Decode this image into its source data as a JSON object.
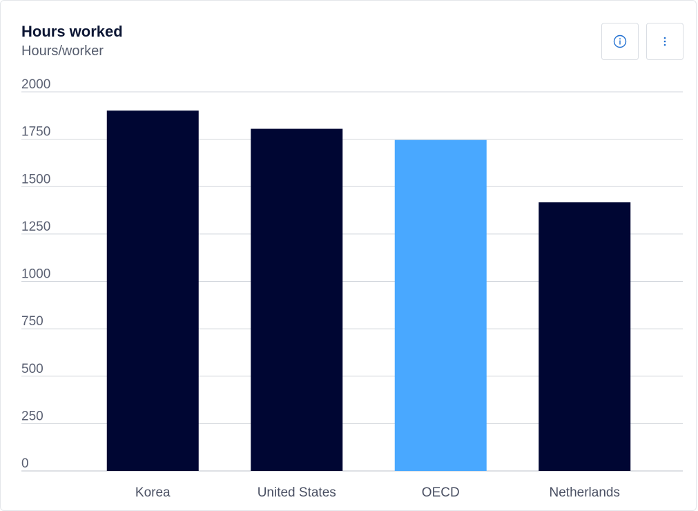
{
  "header": {
    "title": "Hours worked",
    "subtitle": "Hours/worker"
  },
  "toolbar": {
    "info_icon": "info-icon",
    "menu_icon": "more-vertical-icon"
  },
  "colors": {
    "default_bar": "#000633",
    "highlight_bar": "#49a8ff",
    "gridline": "#d2d6dc",
    "icon": "#1f6fd1"
  },
  "chart_data": {
    "type": "bar",
    "categories": [
      "Korea",
      "United States",
      "OECD",
      "Netherlands"
    ],
    "values": [
      1901,
      1805,
      1746,
      1417
    ],
    "highlight": [
      "OECD"
    ],
    "ylim": [
      0,
      2000
    ],
    "yticks": [
      0,
      250,
      500,
      750,
      1000,
      1250,
      1500,
      1750,
      2000
    ],
    "ytick_labels": [
      "0",
      "250",
      "500",
      "750",
      "1000",
      "1250",
      "1500",
      "1750",
      "2000"
    ],
    "grid": true,
    "xlabel": "",
    "ylabel": ""
  }
}
